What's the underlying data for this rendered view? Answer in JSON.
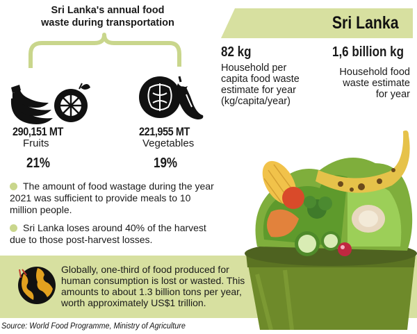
{
  "heading": {
    "line1": "Sri Lanka's annual food",
    "line2": "waste during transportation"
  },
  "fruits": {
    "icon": "fruit-icon",
    "amount": "290,151 MT",
    "label": "Fruits",
    "percent": "21%"
  },
  "vegetables": {
    "icon": "vegetable-icon",
    "amount": "221,955 MT",
    "label": "Vegetables",
    "percent": "19%"
  },
  "country": {
    "title": "Sri Lanka"
  },
  "per_capita": {
    "value": "82 kg",
    "line1": "Household per",
    "line2": "capita food waste",
    "line3": "estimate for year",
    "line4": "(kg/capita/year)"
  },
  "household_total": {
    "value": "1,6 billion kg",
    "line1": "Household food",
    "line2": "waste estimate",
    "line3": "for year"
  },
  "bullets": [
    {
      "line1": "The amount of food wastage during the year",
      "line2": "2021 was sufficient to provide meals to 10",
      "line3": "million people."
    },
    {
      "line1": "Sri Lanka loses around 40% of the harvest",
      "line2": "due to those post-harvest losses."
    }
  ],
  "global": {
    "icon": "globe-icon",
    "line1": "Globally, one-third of food produced for",
    "line2": "human consumption is lost or wasted. This",
    "line3": "amounts to about 1.3 billion tons per year,",
    "line4": "worth approximately US$1 trillion."
  },
  "source": "Source: World Food Programme, Ministry of  Agriculture",
  "colors": {
    "accent_green": "#d7e0a0",
    "bullet_green": "#c9d68c",
    "bin_green": "#6e8a2a"
  }
}
